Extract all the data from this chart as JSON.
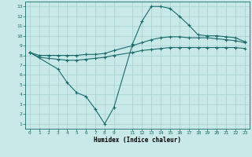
{
  "xlabel": "Humidex (Indice chaleur)",
  "ylabel": "",
  "xlim": [
    -0.5,
    23.5
  ],
  "ylim": [
    0.5,
    13.5
  ],
  "xticks": [
    0,
    1,
    2,
    3,
    4,
    5,
    6,
    7,
    8,
    9,
    11,
    12,
    13,
    14,
    15,
    16,
    17,
    18,
    19,
    20,
    21,
    22,
    23
  ],
  "yticks": [
    1,
    2,
    3,
    4,
    5,
    6,
    7,
    8,
    9,
    10,
    11,
    12,
    13
  ],
  "bg_color": "#c9e9e9",
  "grid_color": "#acd4d4",
  "line_color": "#1a6b6b",
  "line1_x": [
    0,
    1,
    2,
    3,
    4,
    5,
    6,
    7,
    8,
    9,
    11,
    12,
    13,
    14,
    15,
    16,
    17,
    18,
    19,
    20,
    21,
    22,
    23
  ],
  "line1_y": [
    8.3,
    8.0,
    8.0,
    8.0,
    8.0,
    8.0,
    8.1,
    8.1,
    8.2,
    8.5,
    9.0,
    9.3,
    9.6,
    9.8,
    9.9,
    9.9,
    9.8,
    9.8,
    9.8,
    9.7,
    9.6,
    9.5,
    9.3
  ],
  "line2_x": [
    0,
    1,
    2,
    3,
    4,
    5,
    6,
    7,
    8,
    9,
    11,
    12,
    13,
    14,
    15,
    16,
    17,
    18,
    19,
    20,
    21,
    22,
    23
  ],
  "line2_y": [
    8.3,
    7.8,
    7.7,
    7.6,
    7.5,
    7.5,
    7.6,
    7.7,
    7.8,
    8.0,
    8.3,
    8.5,
    8.6,
    8.7,
    8.8,
    8.8,
    8.8,
    8.8,
    8.8,
    8.8,
    8.8,
    8.8,
    8.7
  ],
  "line3_x": [
    0,
    3,
    4,
    5,
    6,
    7,
    8,
    9,
    11,
    12,
    13,
    14,
    15,
    16,
    17,
    18,
    19,
    20,
    21,
    22,
    23
  ],
  "line3_y": [
    8.3,
    6.6,
    5.2,
    4.2,
    3.8,
    2.5,
    1.0,
    2.7,
    9.2,
    11.5,
    13.0,
    13.0,
    12.8,
    12.0,
    11.1,
    10.1,
    10.0,
    10.0,
    9.9,
    9.8,
    9.4
  ]
}
